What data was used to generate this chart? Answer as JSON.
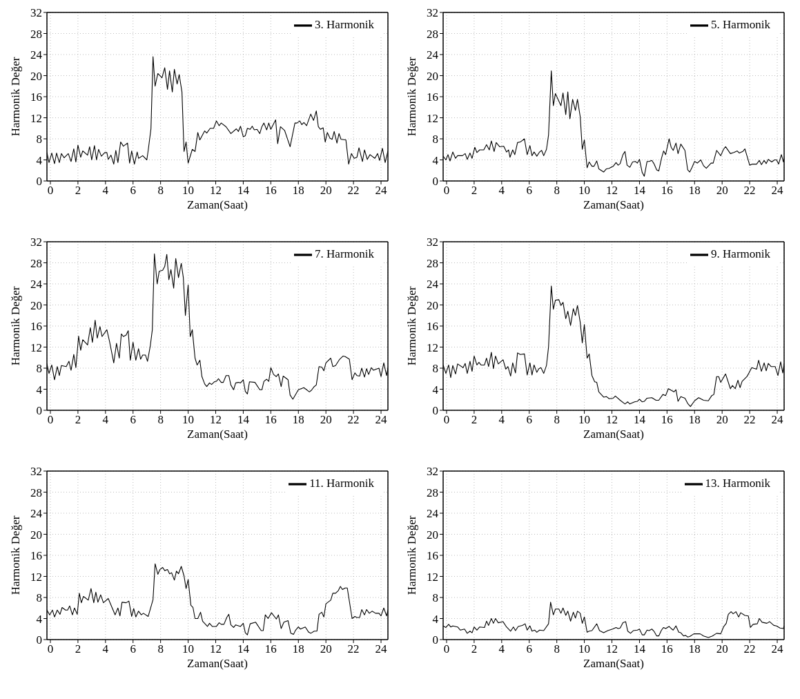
{
  "chart_data": [
    {
      "type": "line",
      "xlabel": "Zaman(Saat)",
      "ylabel": "Harmonik Değer",
      "xlim": [
        -0.25,
        24.5
      ],
      "xticks": [
        0,
        2,
        4,
        6,
        8,
        10,
        12,
        14,
        16,
        18,
        20,
        22,
        24
      ],
      "ylim": [
        0,
        32
      ],
      "yticks": [
        0,
        4,
        8,
        12,
        16,
        20,
        24,
        28,
        32
      ],
      "grid": true,
      "legend": "top right",
      "marker": "none",
      "line_style": "solid",
      "series": [
        {
          "name": "3. Harmonik",
          "color": "#000000",
          "x": [
            -0.25,
            -0.1,
            0.1,
            0.3,
            0.45,
            0.65,
            0.8,
            1.0,
            1.3,
            1.5,
            1.7,
            1.85,
            2.0,
            2.2,
            2.35,
            2.7,
            2.85,
            3.0,
            3.2,
            3.35,
            3.5,
            3.7,
            3.95,
            4.1,
            4.2,
            4.4,
            4.6,
            4.75,
            4.9,
            5.1,
            5.3,
            5.6,
            5.75,
            5.9,
            6.1,
            6.3,
            6.4,
            6.7,
            7.0,
            7.1,
            7.3,
            7.45,
            7.6,
            7.8,
            8.1,
            8.3,
            8.5,
            8.65,
            8.85,
            9.0,
            9.2,
            9.35,
            9.55,
            9.7,
            9.85,
            10.0,
            10.3,
            10.5,
            10.7,
            10.85,
            11.2,
            11.35,
            11.6,
            11.85,
            12.05,
            12.25,
            12.4,
            12.75,
            13.1,
            13.5,
            13.65,
            13.8,
            14.0,
            14.15,
            14.3,
            14.5,
            14.65,
            14.8,
            15.0,
            15.2,
            15.35,
            15.5,
            15.7,
            15.85,
            16.0,
            16.35,
            16.5,
            16.7,
            17.0,
            17.4,
            17.75,
            17.9,
            18.1,
            18.25,
            18.4,
            18.6,
            18.9,
            19.1,
            19.3,
            19.45,
            19.6,
            19.8,
            19.95,
            20.1,
            20.3,
            20.45,
            20.6,
            20.8,
            20.95,
            21.1,
            21.45,
            21.65,
            21.85,
            22.05,
            22.25,
            22.4,
            22.65,
            22.8,
            23.0,
            23.2,
            23.55,
            23.75,
            23.9,
            24.1,
            24.3,
            24.5
          ],
          "values": [
            5.4,
            3.5,
            5.3,
            3.3,
            5.3,
            3.5,
            5.2,
            4.4,
            5.2,
            3.7,
            6.1,
            3.6,
            6.8,
            4.5,
            5.7,
            4.9,
            6.5,
            4.0,
            6.7,
            4.0,
            6.0,
            4.7,
            5.4,
            5.4,
            4.1,
            4.9,
            3.2,
            5.8,
            3.5,
            7.4,
            6.6,
            7.2,
            3.4,
            5.7,
            3.2,
            5.5,
            4.3,
            4.8,
            4.0,
            5.8,
            9.9,
            23.6,
            18.0,
            20.4,
            19.6,
            21.5,
            17.4,
            20.9,
            16.9,
            21.2,
            18.4,
            20.2,
            16.9,
            5.6,
            7.4,
            3.4,
            6.0,
            5.6,
            9.2,
            7.8,
            9.5,
            9.1,
            10.0,
            10.0,
            11.4,
            10.5,
            11.0,
            10.3,
            9.0,
            9.9,
            9.4,
            10.4,
            8.4,
            8.6,
            10.0,
            9.8,
            10.4,
            9.7,
            9.8,
            9.0,
            10.3,
            11.0,
            9.7,
            11.0,
            9.8,
            11.6,
            7.1,
            10.3,
            9.6,
            6.5,
            11.0,
            11.0,
            11.4,
            10.7,
            11.1,
            10.5,
            12.7,
            11.5,
            13.3,
            10.3,
            9.8,
            10.1,
            7.4,
            9.2,
            8.1,
            7.9,
            9.4,
            7.2,
            9.0,
            7.9,
            7.8,
            3.2,
            5.2,
            4.3,
            4.5,
            6.3,
            3.7,
            5.9,
            4.1,
            5.0,
            4.3,
            5.2,
            3.9,
            6.2,
            3.5,
            5.7
          ]
        }
      ]
    },
    {
      "type": "line",
      "xlabel": "Zaman(Saat)",
      "ylabel": "Harmonik Değer",
      "xlim": [
        -0.25,
        24.5
      ],
      "xticks": [
        0,
        2,
        4,
        6,
        8,
        10,
        12,
        14,
        16,
        18,
        20,
        22,
        24
      ],
      "ylim": [
        0,
        32
      ],
      "yticks": [
        0,
        4,
        8,
        12,
        16,
        20,
        24,
        28,
        32
      ],
      "grid": true,
      "legend": "top right",
      "marker": "none",
      "line_style": "solid",
      "series": [
        {
          "name": "5. Harmonik",
          "color": "#000000",
          "x": [
            -0.25,
            -0.05,
            0.1,
            0.25,
            0.45,
            0.65,
            0.8,
            1.15,
            1.35,
            1.5,
            1.7,
            1.85,
            2.05,
            2.2,
            2.4,
            2.7,
            2.9,
            3.1,
            3.25,
            3.45,
            3.6,
            3.85,
            4.15,
            4.35,
            4.5,
            4.6,
            4.8,
            4.95,
            5.15,
            5.35,
            5.65,
            5.85,
            6.05,
            6.2,
            6.35,
            6.55,
            6.75,
            6.9,
            7.05,
            7.25,
            7.4,
            7.6,
            7.75,
            7.9,
            8.3,
            8.45,
            8.65,
            8.8,
            8.95,
            9.15,
            9.35,
            9.5,
            9.7,
            9.85,
            10.0,
            10.2,
            10.35,
            10.55,
            10.7,
            10.9,
            11.05,
            11.4,
            11.6,
            11.8,
            12.0,
            12.1,
            12.3,
            12.45,
            12.6,
            12.8,
            12.95,
            13.1,
            13.3,
            13.5,
            13.7,
            13.85,
            14.0,
            14.2,
            14.35,
            14.55,
            14.7,
            14.9,
            15.05,
            15.25,
            15.4,
            15.6,
            15.75,
            15.9,
            16.15,
            16.3,
            16.45,
            16.65,
            16.8,
            17.0,
            17.3,
            17.5,
            17.65,
            17.8,
            18.0,
            18.2,
            18.45,
            18.65,
            18.85,
            19.2,
            19.35,
            19.6,
            19.9,
            20.1,
            20.25,
            20.6,
            20.85,
            21.1,
            21.25,
            21.5,
            21.65,
            21.8,
            22.0,
            22.2,
            22.5,
            22.7,
            22.85,
            23.05,
            23.2,
            23.35,
            23.6,
            23.8,
            23.95,
            24.1,
            24.3,
            24.45,
            24.5
          ],
          "values": [
            4.7,
            4.0,
            5.0,
            3.8,
            5.5,
            4.3,
            4.8,
            4.8,
            5.2,
            4.1,
            5.3,
            4.3,
            6.4,
            5.4,
            5.9,
            5.9,
            6.9,
            5.9,
            7.6,
            5.6,
            7.3,
            6.5,
            6.6,
            5.5,
            5.9,
            4.5,
            5.9,
            5.0,
            7.3,
            7.4,
            8.0,
            5.0,
            6.7,
            4.8,
            5.5,
            4.7,
            5.5,
            5.8,
            4.8,
            6.0,
            8.7,
            20.9,
            14.3,
            16.6,
            14.3,
            16.7,
            12.6,
            16.9,
            11.8,
            15.5,
            13.4,
            15.5,
            12.2,
            6.0,
            7.8,
            2.5,
            3.6,
            2.8,
            2.8,
            3.8,
            2.3,
            1.7,
            2.3,
            2.4,
            2.7,
            2.8,
            3.5,
            3.0,
            3.3,
            5.0,
            5.6,
            3.0,
            2.6,
            3.6,
            3.7,
            3.4,
            4.1,
            1.6,
            0.9,
            3.7,
            3.7,
            3.9,
            3.3,
            2.1,
            1.9,
            4.3,
            5.7,
            5.0,
            8.0,
            6.4,
            5.8,
            7.2,
            5.2,
            7.0,
            5.8,
            2.1,
            1.7,
            2.5,
            3.7,
            3.4,
            4.0,
            2.9,
            2.4,
            3.4,
            3.4,
            5.8,
            4.8,
            6.0,
            6.5,
            5.2,
            5.4,
            5.7,
            5.3,
            5.6,
            6.1,
            4.8,
            3.0,
            3.2,
            3.2,
            3.9,
            3.1,
            3.9,
            3.3,
            4.1,
            3.6,
            4.0,
            4.0,
            3.2,
            5.0,
            3.6,
            4.5
          ]
        }
      ]
    },
    {
      "type": "line",
      "xlabel": "Zaman(Saat)",
      "ylabel": "Harmonik Değer",
      "xlim": [
        -0.25,
        24.5
      ],
      "xticks": [
        0,
        2,
        4,
        6,
        8,
        10,
        12,
        14,
        16,
        18,
        20,
        22,
        24
      ],
      "ylim": [
        0,
        32
      ],
      "yticks": [
        0,
        4,
        8,
        12,
        16,
        20,
        24,
        28,
        32
      ],
      "grid": true,
      "legend": "top right",
      "marker": "none",
      "line_style": "solid",
      "series": [
        {
          "name": "7. Harmonik",
          "color": "#000000",
          "x": [
            -0.25,
            -0.1,
            0.1,
            0.3,
            0.5,
            0.65,
            0.8,
            1.15,
            1.35,
            1.5,
            1.7,
            1.85,
            2.05,
            2.2,
            2.35,
            2.7,
            2.9,
            3.05,
            3.25,
            3.4,
            3.6,
            3.75,
            4.1,
            4.3,
            4.6,
            4.8,
            5.0,
            5.15,
            5.3,
            5.5,
            5.65,
            5.8,
            6.0,
            6.2,
            6.4,
            6.55,
            6.7,
            6.9,
            7.05,
            7.25,
            7.4,
            7.55,
            7.75,
            7.9,
            8.15,
            8.3,
            8.45,
            8.6,
            8.75,
            8.95,
            9.1,
            9.3,
            9.5,
            9.65,
            9.8,
            10.0,
            10.15,
            10.3,
            10.5,
            10.65,
            10.85,
            11.0,
            11.2,
            11.35,
            11.55,
            11.7,
            11.9,
            12.05,
            12.2,
            12.4,
            12.55,
            12.75,
            12.95,
            13.1,
            13.3,
            13.45,
            13.65,
            13.8,
            14.0,
            14.15,
            14.3,
            14.45,
            14.85,
            15.2,
            15.35,
            15.5,
            15.7,
            15.85,
            16.0,
            16.2,
            16.4,
            16.55,
            16.75,
            16.9,
            17.25,
            17.4,
            17.6,
            18.0,
            18.4,
            18.8,
            18.95,
            19.15,
            19.3,
            19.5,
            19.7,
            19.85,
            20.0,
            20.35,
            20.5,
            20.7,
            21.0,
            21.25,
            21.4,
            21.7,
            21.9,
            22.1,
            22.25,
            22.45,
            22.6,
            22.8,
            22.95,
            23.1,
            23.3,
            23.45,
            23.85,
            24.0,
            24.2,
            24.4,
            24.5
          ],
          "values": [
            8.8,
            7.0,
            8.6,
            5.8,
            8.3,
            6.6,
            8.5,
            8.3,
            9.3,
            7.6,
            10.6,
            8.1,
            14.1,
            11.4,
            13.4,
            12.4,
            15.7,
            12.9,
            17.1,
            13.7,
            15.9,
            14.0,
            15.3,
            13.0,
            9.0,
            12.7,
            9.9,
            14.5,
            14.0,
            14.3,
            15.1,
            9.5,
            12.9,
            9.5,
            11.7,
            9.7,
            10.5,
            10.5,
            9.3,
            12.2,
            15.3,
            29.7,
            24.0,
            26.4,
            26.6,
            27.3,
            29.6,
            24.8,
            26.7,
            23.2,
            28.8,
            25.2,
            27.9,
            25.2,
            18.0,
            23.8,
            14.0,
            15.3,
            9.9,
            8.6,
            9.5,
            6.4,
            5.0,
            4.5,
            5.2,
            4.9,
            5.4,
            5.5,
            6.0,
            5.3,
            5.3,
            6.6,
            6.6,
            4.8,
            3.9,
            5.2,
            5.3,
            5.2,
            5.8,
            3.6,
            3.1,
            5.4,
            5.3,
            3.9,
            3.9,
            5.5,
            5.9,
            5.5,
            8.1,
            6.8,
            6.4,
            6.9,
            4.5,
            6.5,
            5.8,
            2.9,
            2.1,
            3.9,
            4.3,
            3.5,
            3.8,
            4.5,
            4.8,
            8.3,
            8.2,
            7.5,
            9.0,
            9.9,
            8.3,
            8.5,
            9.7,
            10.3,
            10.2,
            9.7,
            5.8,
            7.1,
            6.6,
            6.5,
            8.0,
            6.3,
            7.9,
            6.8,
            8.1,
            7.6,
            8.0,
            6.4,
            9.0,
            6.6,
            8.1
          ]
        }
      ]
    },
    {
      "type": "line",
      "xlabel": "Zaman(Saat)",
      "ylabel": "Harmonik Değer",
      "xlim": [
        -0.25,
        24.5
      ],
      "xticks": [
        0,
        2,
        4,
        6,
        8,
        10,
        12,
        14,
        16,
        18,
        20,
        22,
        24
      ],
      "ylim": [
        0,
        32
      ],
      "yticks": [
        0,
        4,
        8,
        12,
        16,
        20,
        24,
        28,
        32
      ],
      "grid": true,
      "legend": "top right",
      "marker": "none",
      "line_style": "solid",
      "series": [
        {
          "name": "9. Harmonik",
          "color": "#000000",
          "x": [
            -0.25,
            -0.05,
            0.15,
            0.3,
            0.45,
            0.65,
            0.8,
            1.2,
            1.35,
            1.5,
            1.7,
            1.85,
            2.0,
            2.2,
            2.35,
            2.5,
            2.75,
            2.9,
            3.05,
            3.25,
            3.4,
            3.55,
            3.75,
            4.1,
            4.3,
            4.45,
            4.65,
            4.8,
            5.0,
            5.15,
            5.35,
            5.65,
            5.85,
            6.05,
            6.2,
            6.35,
            6.55,
            6.7,
            6.85,
            7.05,
            7.25,
            7.4,
            7.6,
            7.75,
            7.9,
            8.15,
            8.3,
            8.45,
            8.65,
            8.8,
            9.0,
            9.2,
            9.35,
            9.5,
            9.7,
            9.85,
            10.0,
            10.2,
            10.35,
            10.55,
            10.75,
            10.9,
            11.05,
            11.4,
            11.6,
            11.8,
            12.1,
            12.25,
            12.6,
            12.95,
            13.15,
            13.3,
            13.65,
            13.85,
            14.0,
            14.2,
            14.35,
            14.55,
            14.9,
            15.2,
            15.4,
            15.7,
            15.9,
            16.1,
            16.5,
            16.65,
            16.8,
            17.0,
            17.3,
            17.5,
            17.7,
            18.0,
            18.3,
            18.65,
            19.0,
            19.25,
            19.4,
            19.6,
            19.75,
            19.9,
            20.25,
            20.6,
            20.75,
            20.95,
            21.15,
            21.3,
            21.45,
            21.8,
            21.95,
            22.15,
            22.5,
            22.65,
            22.85,
            23.05,
            23.2,
            23.35,
            23.55,
            23.85,
            24.05,
            24.25,
            24.4,
            24.5
          ],
          "values": [
            8.6,
            7.0,
            8.6,
            6.2,
            8.5,
            6.9,
            8.8,
            8.1,
            8.9,
            7.0,
            9.3,
            7.4,
            10.3,
            8.6,
            9.1,
            8.6,
            8.6,
            9.9,
            8.3,
            11.0,
            7.9,
            10.3,
            8.8,
            9.6,
            7.8,
            8.3,
            6.5,
            9.0,
            7.1,
            10.9,
            10.6,
            10.7,
            6.7,
            9.0,
            6.7,
            8.6,
            7.2,
            7.9,
            8.1,
            7.0,
            8.5,
            12.0,
            23.6,
            19.2,
            20.9,
            21.0,
            19.9,
            20.5,
            17.4,
            18.8,
            16.1,
            19.3,
            18.0,
            19.9,
            16.7,
            12.8,
            16.3,
            9.9,
            10.7,
            6.6,
            5.4,
            5.3,
            3.5,
            2.5,
            2.6,
            2.2,
            2.3,
            2.7,
            1.9,
            1.2,
            1.6,
            1.2,
            1.6,
            1.7,
            2.1,
            1.6,
            1.7,
            2.3,
            2.4,
            1.9,
            1.9,
            3.0,
            2.8,
            4.1,
            3.5,
            3.9,
            1.7,
            2.6,
            2.3,
            1.3,
            0.7,
            1.8,
            2.4,
            1.9,
            1.8,
            2.8,
            3.0,
            6.4,
            6.4,
            5.3,
            6.9,
            4.1,
            4.7,
            4.1,
            5.7,
            4.3,
            5.5,
            6.4,
            7.1,
            8.1,
            7.8,
            9.5,
            7.4,
            9.0,
            7.5,
            8.9,
            8.3,
            8.3,
            6.6,
            9.2,
            7.1,
            8.8
          ]
        }
      ]
    },
    {
      "type": "line",
      "xlabel": "Zaman(Saat)",
      "ylabel": "Harmonik Değer",
      "xlim": [
        -0.25,
        24.5
      ],
      "xticks": [
        0,
        2,
        4,
        6,
        8,
        10,
        12,
        14,
        16,
        18,
        20,
        22,
        24
      ],
      "ylim": [
        0,
        32
      ],
      "yticks": [
        0,
        4,
        8,
        12,
        16,
        20,
        24,
        28,
        32
      ],
      "grid": true,
      "legend": "top right",
      "marker": "none",
      "line_style": "solid",
      "series": [
        {
          "name": "11. Harmonik",
          "color": "#000000",
          "x": [
            -0.25,
            -0.05,
            0.15,
            0.3,
            0.5,
            0.7,
            0.85,
            1.1,
            1.25,
            1.4,
            1.6,
            1.75,
            1.95,
            2.1,
            2.25,
            2.4,
            2.75,
            2.95,
            3.15,
            3.3,
            3.45,
            3.65,
            3.85,
            4.2,
            4.7,
            4.9,
            5.05,
            5.2,
            5.5,
            5.7,
            5.9,
            6.05,
            6.2,
            6.4,
            6.6,
            6.75,
            7.1,
            7.45,
            7.6,
            7.8,
            7.95,
            8.15,
            8.3,
            8.5,
            8.65,
            8.8,
            9.0,
            9.15,
            9.3,
            9.5,
            9.7,
            9.85,
            10.0,
            10.2,
            10.35,
            10.5,
            10.7,
            10.9,
            11.05,
            11.4,
            11.55,
            11.75,
            12.05,
            12.25,
            12.4,
            12.6,
            12.8,
            12.95,
            13.1,
            13.3,
            13.45,
            13.8,
            14.0,
            14.15,
            14.3,
            14.5,
            14.9,
            15.3,
            15.45,
            15.6,
            15.8,
            16.05,
            16.4,
            16.55,
            16.75,
            16.95,
            17.25,
            17.45,
            17.65,
            17.8,
            18.0,
            18.15,
            18.5,
            18.75,
            18.9,
            19.15,
            19.35,
            19.5,
            19.7,
            19.85,
            20.0,
            20.35,
            20.5,
            20.7,
            20.9,
            21.05,
            21.2,
            21.4,
            21.55,
            21.9,
            22.1,
            22.25,
            22.45,
            22.6,
            22.8,
            22.95,
            23.15,
            23.35,
            23.6,
            23.85,
            24.0,
            24.2,
            24.4,
            24.5
          ],
          "values": [
            5.6,
            4.7,
            5.6,
            4.3,
            5.6,
            4.8,
            6.1,
            5.6,
            5.6,
            6.4,
            4.7,
            6.0,
            4.8,
            8.8,
            7.0,
            8.2,
            7.5,
            9.7,
            7.0,
            9.0,
            7.1,
            8.5,
            7.0,
            7.8,
            4.7,
            6.0,
            4.5,
            7.1,
            7.0,
            7.3,
            4.4,
            5.9,
            4.3,
            5.4,
            4.7,
            5.0,
            4.4,
            7.6,
            14.4,
            12.4,
            13.3,
            13.7,
            13.1,
            13.3,
            12.5,
            12.7,
            11.3,
            13.0,
            12.5,
            13.9,
            12.1,
            9.7,
            11.4,
            6.5,
            6.1,
            4.0,
            4.0,
            5.2,
            3.5,
            2.5,
            3.1,
            2.5,
            2.5,
            3.2,
            2.9,
            2.9,
            4.2,
            4.8,
            2.8,
            2.3,
            2.8,
            2.5,
            3.1,
            1.3,
            0.9,
            3.0,
            3.3,
            1.7,
            1.7,
            4.7,
            4.0,
            5.1,
            3.9,
            4.7,
            2.1,
            3.3,
            3.6,
            1.2,
            1.0,
            1.8,
            2.4,
            2.0,
            2.4,
            1.4,
            1.2,
            1.6,
            1.6,
            4.8,
            5.2,
            4.3,
            6.8,
            7.5,
            8.8,
            8.8,
            9.3,
            10.1,
            9.5,
            9.8,
            9.8,
            4.0,
            4.4,
            4.2,
            4.2,
            5.7,
            4.7,
            5.7,
            5.0,
            5.4,
            5.0,
            5.0,
            4.5,
            6.0,
            4.5,
            5.6
          ]
        }
      ]
    },
    {
      "type": "line",
      "xlabel": "Zaman(Saat)",
      "ylabel": "Harmonik Değer",
      "xlim": [
        -0.25,
        24.5
      ],
      "xticks": [
        0,
        2,
        4,
        6,
        8,
        10,
        12,
        14,
        16,
        18,
        20,
        22,
        24
      ],
      "ylim": [
        0,
        32
      ],
      "yticks": [
        0,
        4,
        8,
        12,
        16,
        20,
        24,
        28,
        32
      ],
      "grid": true,
      "legend": "top right",
      "marker": "none",
      "line_style": "solid",
      "series": [
        {
          "name": "13. Harmonik",
          "color": "#000000",
          "x": [
            -0.25,
            -0.05,
            0.15,
            0.3,
            0.45,
            0.8,
            1.0,
            1.3,
            1.5,
            1.7,
            1.85,
            2.0,
            2.2,
            2.4,
            2.75,
            2.9,
            3.05,
            3.25,
            3.4,
            3.55,
            3.75,
            4.1,
            4.35,
            4.65,
            4.85,
            5.0,
            5.2,
            5.5,
            5.7,
            5.85,
            6.05,
            6.2,
            6.4,
            6.55,
            6.75,
            7.05,
            7.4,
            7.55,
            7.75,
            7.9,
            8.15,
            8.3,
            8.45,
            8.65,
            8.8,
            9.0,
            9.2,
            9.35,
            9.5,
            9.7,
            9.85,
            10.0,
            10.2,
            10.35,
            10.55,
            10.9,
            11.1,
            11.4,
            11.7,
            12.05,
            12.3,
            12.45,
            12.6,
            12.8,
            13.0,
            13.15,
            13.35,
            13.55,
            13.85,
            14.0,
            14.2,
            14.35,
            14.55,
            14.7,
            14.9,
            15.05,
            15.25,
            15.4,
            15.6,
            15.75,
            15.9,
            16.15,
            16.3,
            16.45,
            16.65,
            16.85,
            17.0,
            17.2,
            17.35,
            17.5,
            17.65,
            17.95,
            18.4,
            18.65,
            19.0,
            19.3,
            19.6,
            19.9,
            20.1,
            20.3,
            20.45,
            20.65,
            20.8,
            21.0,
            21.2,
            21.35,
            21.65,
            21.9,
            22.05,
            22.25,
            22.55,
            22.7,
            22.9,
            23.25,
            23.45,
            23.75,
            23.95,
            24.2,
            24.45,
            24.5
          ],
          "values": [
            2.6,
            2.3,
            2.9,
            2.4,
            2.6,
            2.4,
            1.8,
            2.0,
            1.2,
            1.6,
            1.3,
            2.4,
            1.8,
            2.4,
            2.3,
            3.5,
            2.7,
            4.0,
            3.1,
            4.0,
            3.2,
            3.4,
            2.4,
            1.6,
            2.4,
            1.7,
            2.5,
            2.7,
            3.0,
            1.8,
            2.6,
            1.6,
            1.8,
            1.4,
            1.8,
            1.7,
            3.0,
            7.1,
            4.7,
            5.8,
            5.8,
            5.0,
            6.0,
            4.6,
            5.4,
            3.5,
            5.2,
            4.1,
            5.4,
            5.0,
            3.1,
            4.3,
            1.4,
            1.6,
            1.7,
            3.0,
            1.7,
            1.3,
            1.7,
            2.0,
            2.3,
            2.1,
            2.2,
            3.2,
            3.4,
            1.6,
            1.2,
            1.7,
            1.8,
            2.0,
            0.9,
            0.9,
            1.8,
            1.7,
            2.0,
            1.6,
            0.7,
            0.7,
            1.8,
            2.3,
            2.1,
            2.5,
            2.1,
            1.8,
            2.6,
            1.4,
            1.3,
            0.7,
            0.8,
            0.5,
            0.6,
            1.1,
            1.1,
            0.7,
            0.4,
            0.7,
            1.2,
            1.1,
            2.4,
            3.1,
            4.8,
            5.3,
            4.9,
            5.3,
            4.3,
            5.1,
            4.6,
            4.5,
            2.3,
            2.9,
            3.0,
            4.0,
            3.3,
            3.1,
            3.4,
            2.7,
            2.6,
            2.2,
            2.1,
            2.6
          ]
        }
      ]
    }
  ]
}
